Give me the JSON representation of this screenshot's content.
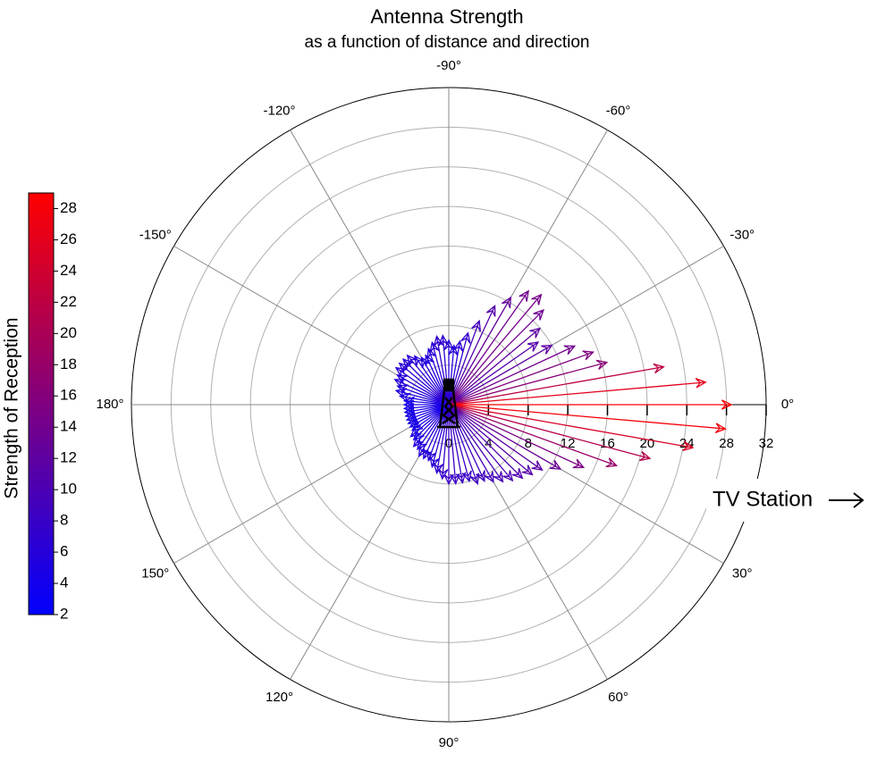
{
  "chart_data": {
    "type": "polar_vector",
    "title": "Antenna Strength",
    "subtitle": "as a function of distance and direction",
    "annotation": "TV Station",
    "colorbar_label": "Strength of Reception",
    "colormap": [
      "#0000ff",
      "#ff0000"
    ],
    "clim": [
      2,
      29
    ],
    "cticks": [
      2,
      4,
      6,
      8,
      10,
      12,
      14,
      16,
      18,
      20,
      22,
      24,
      26,
      28
    ],
    "rlim": [
      0,
      32
    ],
    "rticks": [
      0,
      4,
      8,
      12,
      16,
      20,
      24,
      28,
      32
    ],
    "thetaticks": [
      {
        "value": 0,
        "label": "0°"
      },
      {
        "value": -30,
        "label": "-30°"
      },
      {
        "value": -60,
        "label": "-60°"
      },
      {
        "value": -90,
        "label": "-90°"
      },
      {
        "value": -120,
        "label": "-120°"
      },
      {
        "value": -150,
        "label": "-150°"
      },
      {
        "value": 180,
        "label": "180°"
      },
      {
        "value": 150,
        "label": "150°"
      },
      {
        "value": 120,
        "label": "120°"
      },
      {
        "value": 90,
        "label": "90°"
      },
      {
        "value": 60,
        "label": "60°"
      },
      {
        "value": 30,
        "label": "30°"
      }
    ],
    "grid": true,
    "angles": [
      -180,
      -175,
      -170,
      -165,
      -160,
      -155,
      -150,
      -145,
      -140,
      -135,
      -130,
      -125,
      -120,
      -115,
      -110,
      -105,
      -100,
      -95,
      -90,
      -85,
      -80,
      -75,
      -70,
      -65,
      -60,
      -55,
      -50,
      -45,
      -40,
      -35,
      -30,
      -25,
      -20,
      -15,
      -10,
      -5,
      0,
      5,
      10,
      15,
      20,
      25,
      30,
      35,
      40,
      45,
      50,
      55,
      60,
      65,
      70,
      75,
      80,
      85,
      90,
      95,
      100,
      105,
      110,
      115,
      120,
      125,
      130,
      135,
      140,
      145,
      150,
      155,
      160,
      165,
      170,
      175
    ],
    "values": [
      4.5,
      4.5,
      5,
      5.5,
      5.5,
      6,
      6,
      6.5,
      6.5,
      6.5,
      6.5,
      6,
      5.5,
      5.5,
      6,
      6.5,
      7,
      7,
      6.5,
      6,
      6.5,
      7.5,
      9,
      11,
      12.5,
      14,
      14.5,
      13.5,
      12,
      11,
      12,
      14,
      15.5,
      16.5,
      22,
      26,
      28.5,
      28,
      25,
      21,
      18,
      15,
      13,
      11.5,
      11,
      10.5,
      10,
      9.5,
      9,
      8.5,
      8.5,
      8,
      8,
      8,
      8,
      7.5,
      7,
      6.5,
      6,
      6,
      6,
      5.5,
      5.5,
      5,
      5,
      4.5,
      4.5,
      4.5,
      4.5,
      4.5,
      4.5,
      4.5
    ]
  }
}
